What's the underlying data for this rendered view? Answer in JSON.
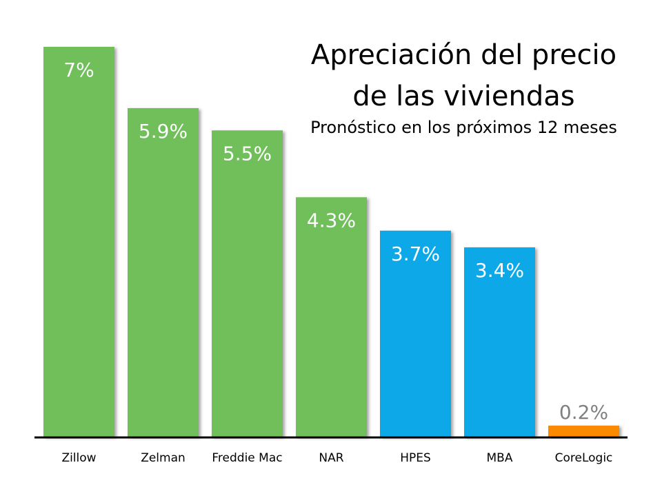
{
  "chart_data": {
    "type": "bar",
    "title": "Apreciación del precio de las viviendas",
    "title_lines": [
      "Apreciación del precio",
      "de las viviendas"
    ],
    "subtitle": "Pronóstico en los próximos 12 meses",
    "categories": [
      "Zillow",
      "Zelman",
      "Freddie Mac",
      "NAR",
      "HPES",
      "MBA",
      "CoreLogic"
    ],
    "values": [
      7,
      5.9,
      5.5,
      4.3,
      3.7,
      3.4,
      0.2
    ],
    "data_labels": [
      "7%",
      "5.9%",
      "5.5%",
      "4.3%",
      "3.7%",
      "3.4%",
      "0.2%"
    ],
    "colors": [
      "#70bf5a",
      "#70bf5a",
      "#70bf5a",
      "#70bf5a",
      "#0fa8e8",
      "#0fa8e8",
      "#fb8a00"
    ],
    "label_colors": [
      "#ffffff",
      "#ffffff",
      "#ffffff",
      "#ffffff",
      "#ffffff",
      "#ffffff",
      "#808080"
    ],
    "xlabel": "",
    "ylabel": "",
    "ylim": [
      0,
      7
    ],
    "grid": false,
    "legend": "none"
  }
}
